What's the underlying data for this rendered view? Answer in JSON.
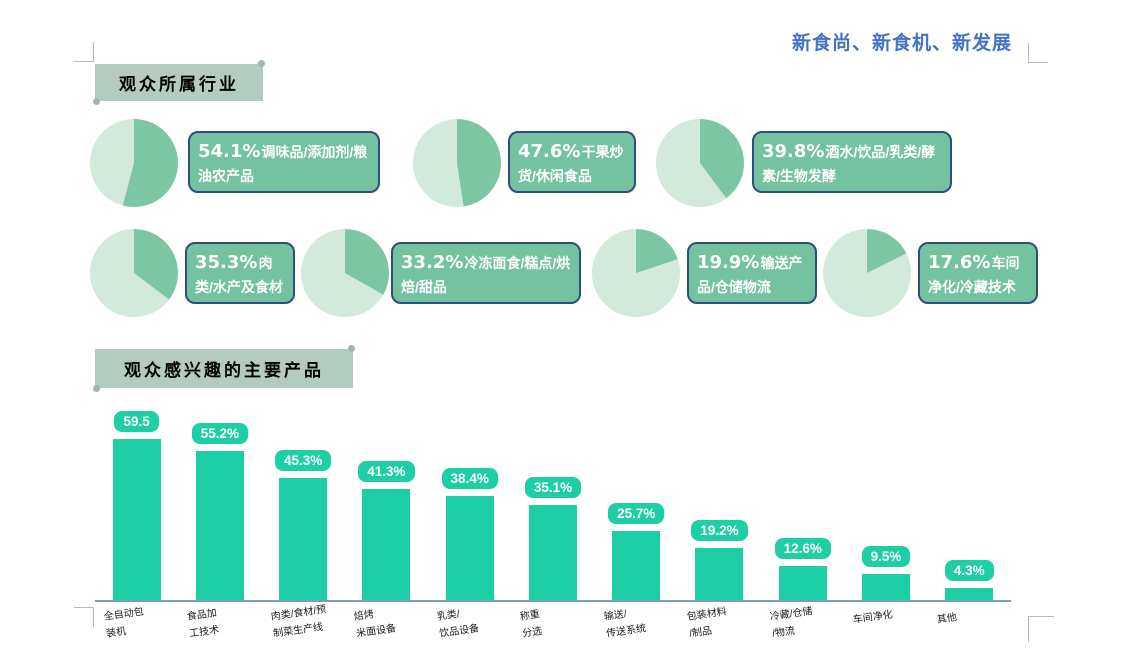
{
  "page": {
    "top_title": "新食尚、新食机、新发展",
    "colors": {
      "accent_blue": "#4472c4",
      "header_bg": "#b4ccc0",
      "pie_dark": "#7cc6a3",
      "pie_light": "#d2e9dc",
      "callout_fill": "#74c2a0",
      "callout_border": "#2e4d80",
      "bar_teal": "#1ecfa6",
      "axis_line": "#7b9cbb"
    }
  },
  "industry_section": {
    "title": "观众所属行业",
    "items": [
      {
        "pct": "54.1%",
        "label": "调味品/添加剂/粮油农产品",
        "value": 54.1
      },
      {
        "pct": "47.6%",
        "label": "干果炒货/休闲食品",
        "value": 47.6
      },
      {
        "pct": "39.8%",
        "label": "酒水/饮品/乳类/酵素/生物发酵",
        "value": 39.8
      },
      {
        "pct": "35.3%",
        "label": "肉类/水产及食材",
        "value": 35.3
      },
      {
        "pct": "33.2%",
        "label": "冷冻面食/糕点/烘焙/甜品",
        "value": 33.2
      },
      {
        "pct": "19.9%",
        "label": "输送产品/仓储物流",
        "value": 19.9
      },
      {
        "pct": "17.6%",
        "label": "车间净化/冷藏技术",
        "value": 17.6
      }
    ]
  },
  "products_section": {
    "title": "观众感兴趣的主要产品"
  },
  "chart_data": {
    "type": "bar",
    "title": "观众感兴趣的主要产品",
    "categories": [
      "全自动包\n装机",
      "食品加\n工技术",
      "肉类/食材/预\n制菜生产线",
      "焙烤\n米面设备",
      "乳类/\n饮品设备",
      "称重\n分选",
      "输送/\n传送系统",
      "包装材料\n/制品",
      "冷藏/仓储\n/物流",
      "车间净化",
      "其他"
    ],
    "values": [
      59.5,
      55.2,
      45.3,
      41.3,
      38.4,
      35.1,
      25.7,
      19.2,
      12.6,
      9.5,
      4.3
    ],
    "value_labels": [
      "59.5",
      "55.2%",
      "45.3%",
      "41.3%",
      "38.4%",
      "35.1%",
      "25.7%",
      "19.2%",
      "12.6%",
      "9.5%",
      "4.3%"
    ],
    "xlabel": "",
    "ylabel": "",
    "ylim": [
      0,
      65
    ],
    "grid": false,
    "legend": null
  }
}
